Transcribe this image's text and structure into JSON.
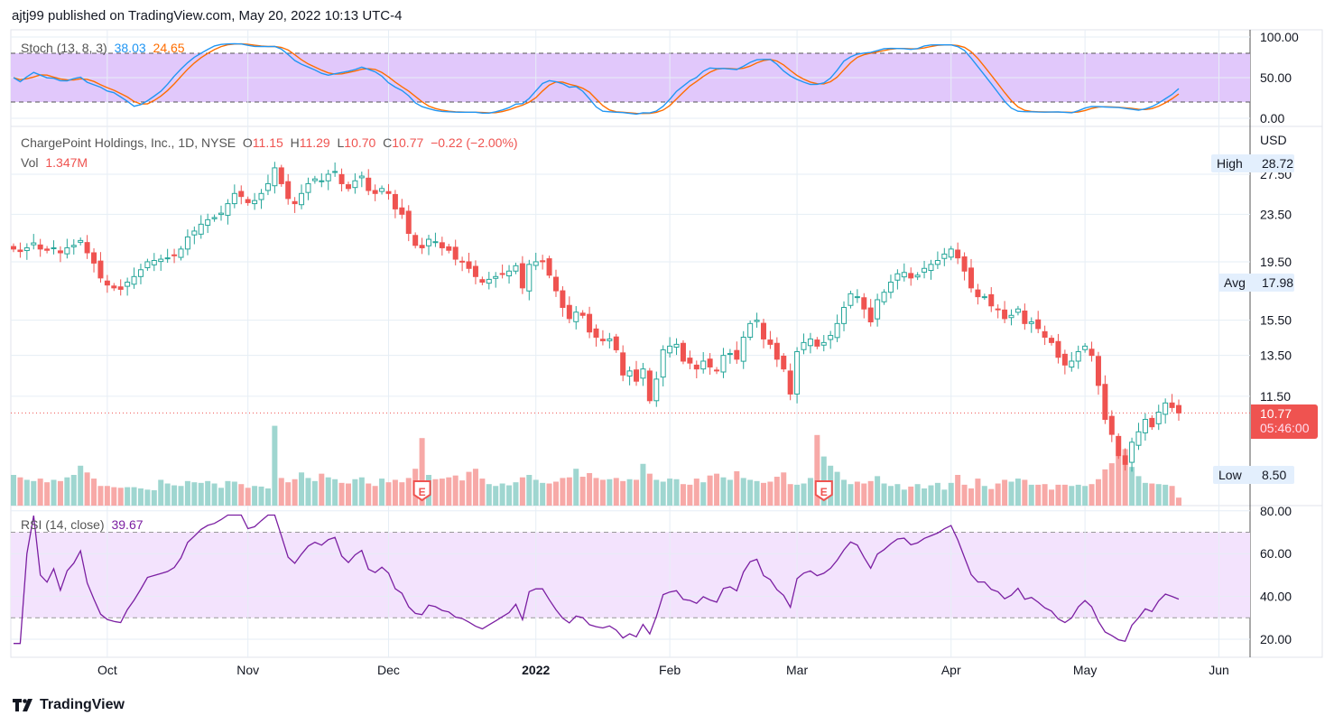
{
  "header": "ajtj99 published on TradingView.com, May 20, 2022 10:13 UTC-4",
  "footer": {
    "brand": "TradingView"
  },
  "colors": {
    "up": "#26a69a",
    "down": "#ef5350",
    "stochK": "#2196f3",
    "stochD": "#ff6d00",
    "rsi": "#7b1fa2",
    "stochBand": "#e1c8fb",
    "rsiBand": "#f3e3fd"
  },
  "stoch_legend": {
    "label": "Stoch (13, 8, 3)",
    "k": "38.03",
    "d": "24.65"
  },
  "main_legend": {
    "symbol": "ChargePoint Holdings, Inc., 1D, NYSE",
    "o_label": "O",
    "o": "11.15",
    "h_label": "H",
    "h": "11.29",
    "l_label": "L",
    "l": "10.70",
    "c_label": "C",
    "c": "10.77",
    "change": "−0.22 (−2.00%)",
    "vol_label": "Vol",
    "vol": "1.347M"
  },
  "rsi_legend": {
    "label": "RSI (14, close)",
    "value": "39.67"
  },
  "price_axis": {
    "currency": "USD",
    "high_label": "High",
    "high": "28.72",
    "avg_label": "Avg",
    "avg": "17.98",
    "low_label": "Low",
    "low": "8.50",
    "last": "10.77",
    "countdown": "05:46:00"
  },
  "earnings_marker": "E",
  "chart_data": [
    {
      "type": "line",
      "name": "stoch",
      "title": "Stoch (13, 8, 3)",
      "ylim": [
        0,
        100
      ],
      "ticks": [
        "100.00",
        "50.00",
        "0.00"
      ],
      "tick_values": [
        100,
        50,
        0
      ],
      "bands": [
        20,
        80
      ]
    },
    {
      "type": "candlestick",
      "name": "price",
      "scale": "log",
      "ticks": [
        "27.50",
        "23.50",
        "19.50",
        "15.50",
        "13.50",
        "11.50"
      ],
      "tick_values": [
        27.5,
        23.5,
        19.5,
        15.5,
        13.5,
        11.5
      ],
      "x_labels": [
        "Oct",
        "Nov",
        "Dec",
        "2022",
        "Feb",
        "Mar",
        "Apr",
        "May",
        "Jun"
      ],
      "x_label_index": [
        14,
        35,
        56,
        78,
        98,
        117,
        140,
        160,
        180
      ],
      "closes": [
        20.5,
        20.3,
        20.6,
        21,
        20.5,
        20.4,
        20.6,
        20.2,
        20.6,
        20.8,
        21.2,
        20.2,
        19.4,
        18.3,
        17.8,
        17.6,
        17.5,
        18,
        18.4,
        18.9,
        19.5,
        19.6,
        19.7,
        19.8,
        20,
        20.5,
        21.5,
        22,
        22.6,
        23,
        23.2,
        23.6,
        24.5,
        25.5,
        25.2,
        24.6,
        24.8,
        25.5,
        26.5,
        28.2,
        26.5,
        25,
        24.5,
        25.5,
        26.5,
        27,
        26.8,
        27.5,
        27.8,
        26.5,
        26,
        26.8,
        27.3,
        25.8,
        25.5,
        26,
        25.5,
        24,
        23.5,
        21.8,
        20.8,
        20.6,
        21.3,
        21.1,
        20.6,
        20.4,
        19.7,
        19.5,
        19,
        18.4,
        18,
        18.2,
        18.4,
        18.6,
        18.8,
        19.2,
        17.6,
        19.3,
        19.5,
        19.5,
        18.5,
        17.4,
        16.3,
        15.6,
        16,
        15.8,
        14.8,
        14.5,
        14.3,
        14.4,
        13.8,
        12.5,
        12.7,
        12.2,
        12.8,
        11.3,
        12.3,
        13.8,
        14,
        14.1,
        13.2,
        13.1,
        12.8,
        13.2,
        12.9,
        12.7,
        13.5,
        13.6,
        13.3,
        14.5,
        15.3,
        15.5,
        14.4,
        14.1,
        13.3,
        12.8,
        11.6,
        13.7,
        14.2,
        14.4,
        14,
        14.2,
        14.6,
        15.3,
        16.3,
        17.2,
        17,
        16.2,
        15.4,
        16.8,
        17.3,
        18,
        18.6,
        18.7,
        18.3,
        18.5,
        19,
        19.3,
        19.6,
        20.1,
        20.5,
        19.8,
        18.8,
        17.6,
        17,
        17,
        16.4,
        16.2,
        15.6,
        15.8,
        16.2,
        15.3,
        15.4,
        15,
        14.5,
        14.2,
        13.4,
        13,
        13.2,
        13.7,
        14,
        13.5,
        12,
        10.5,
        9.9,
        9.1,
        8.8,
        9.6,
        10,
        10.5,
        10.2,
        10.8,
        11.2,
        11,
        10.77
      ],
      "volumes_m": [
        5,
        4.6,
        4.2,
        4,
        4.4,
        3.8,
        4.2,
        4,
        4.6,
        5,
        6.5,
        5.4,
        4.4,
        3.2,
        3.2,
        3,
        2.9,
        3,
        3,
        2.8,
        2.6,
        2.5,
        4.2,
        3.6,
        3.3,
        3.2,
        4,
        3.8,
        3.7,
        4,
        3.6,
        2.9,
        4,
        3.9,
        3.5,
        2.9,
        3.2,
        3.1,
        2.8,
        13,
        4.5,
        3.8,
        4.3,
        5.4,
        4.5,
        4,
        5.2,
        4.6,
        4.3,
        3.7,
        3.6,
        4.3,
        4.6,
        3.6,
        3.2,
        4.4,
        3.8,
        4.2,
        3.8,
        4.5,
        6,
        11,
        5,
        4.3,
        4.4,
        4.6,
        4.9,
        4.1,
        5.5,
        6,
        4.4,
        3.5,
        3.2,
        3.6,
        3.3,
        3.8,
        4.6,
        5,
        4.2,
        3.7,
        3.6,
        3.9,
        4.5,
        4.6,
        6,
        4.7,
        5.3,
        4.5,
        4.2,
        4.3,
        4.5,
        4,
        4.3,
        4.2,
        6.8,
        5.2,
        4.2,
        3.9,
        4.4,
        4.3,
        3.5,
        3.4,
        4.4,
        3.8,
        4.9,
        5.2,
        4.6,
        4.2,
        5.6,
        4.5,
        4.2,
        4,
        3.7,
        3.9,
        4.7,
        5.4,
        3.5,
        3.4,
        3.6,
        4.5,
        11.5,
        8,
        6.5,
        5.5,
        4.2,
        3.5,
        3.9,
        3.6,
        4,
        4.8,
        3.6,
        3.2,
        3.5,
        2.6,
        3.1,
        3.5,
        2.8,
        3.3,
        3.7,
        2.6,
        3.7,
        5,
        3.4,
        2.8,
        4.4,
        3.2,
        2.7,
        3.6,
        4.2,
        3.9,
        4.4,
        4.2,
        3.4,
        3.4,
        3.5,
        2.6,
        3.4,
        3.4,
        3.2,
        3.4,
        3.2,
        3.5,
        4.3,
        5.9,
        6.9,
        8,
        9.2,
        6.3,
        4.8,
        3.7,
        3.6,
        3.5,
        3.4,
        3.2,
        1.3
      ]
    },
    {
      "type": "line",
      "name": "rsi",
      "title": "RSI (14, close)",
      "ylim": [
        15,
        82
      ],
      "ticks": [
        "80.00",
        "60.00",
        "40.00",
        "20.00"
      ],
      "tick_values": [
        80,
        60,
        40,
        20
      ],
      "bands": [
        30,
        70
      ]
    }
  ]
}
